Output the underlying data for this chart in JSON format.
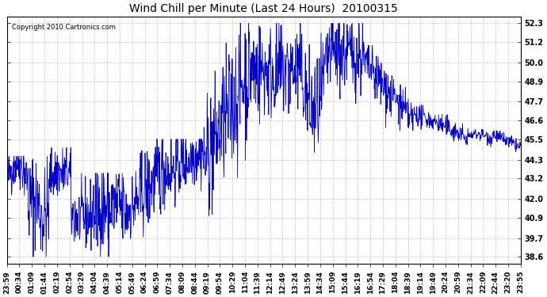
{
  "title": "Wind Chill per Minute (Last 24 Hours)  20100315",
  "copyright_text": "Copyright 2010 Cartronics.com",
  "line_color": "#0000CC",
  "bg_color": "#ffffff",
  "grid_color": "#aaaaaa",
  "yticks": [
    38.6,
    39.7,
    40.9,
    42.0,
    43.2,
    44.3,
    45.5,
    46.6,
    47.7,
    48.9,
    50.0,
    51.2,
    52.3
  ],
  "ymin": 38.2,
  "ymax": 52.7,
  "xtick_labels": [
    "23:59",
    "00:34",
    "01:09",
    "01:44",
    "02:19",
    "02:54",
    "03:29",
    "04:04",
    "04:39",
    "05:14",
    "05:49",
    "06:24",
    "06:59",
    "07:34",
    "08:09",
    "08:44",
    "09:19",
    "09:54",
    "10:29",
    "11:04",
    "11:39",
    "12:14",
    "12:49",
    "13:24",
    "13:59",
    "14:34",
    "15:09",
    "15:44",
    "16:19",
    "16:54",
    "17:29",
    "18:04",
    "18:39",
    "19:14",
    "19:49",
    "20:24",
    "20:59",
    "21:34",
    "22:09",
    "22:44",
    "23:20",
    "23:55"
  ]
}
